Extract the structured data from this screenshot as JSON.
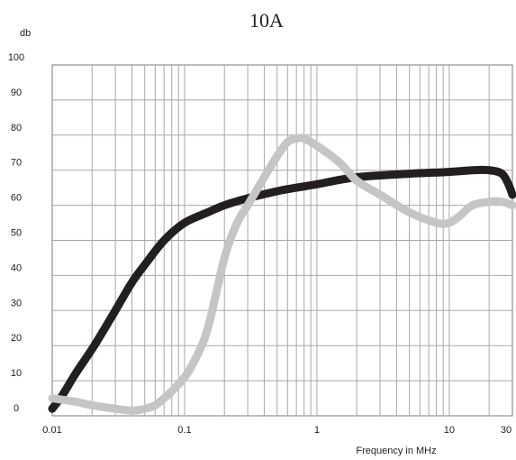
{
  "chart_data": {
    "type": "line",
    "title": "10A",
    "ylabel": "db",
    "xlabel": "Frequency in MHz",
    "x_scale": "log",
    "xlim": [
      0.01,
      30
    ],
    "ylim": [
      0,
      100
    ],
    "grid": true,
    "x_tick_labels": [
      {
        "value": 0.01,
        "label": "0.01"
      },
      {
        "value": 0.1,
        "label": "0.1"
      },
      {
        "value": 1,
        "label": "1"
      },
      {
        "value": 10,
        "label": "10"
      },
      {
        "value": 30,
        "label": "30"
      }
    ],
    "y_ticks": [
      0,
      10,
      20,
      30,
      40,
      50,
      60,
      70,
      80,
      90,
      100
    ],
    "series": [
      {
        "color": "#231f20",
        "x": [
          0.01,
          0.012,
          0.015,
          0.02,
          0.025,
          0.03,
          0.04,
          0.05,
          0.07,
          0.1,
          0.15,
          0.2,
          0.3,
          0.5,
          0.7,
          1,
          2,
          5,
          10,
          15,
          20,
          25,
          28,
          30
        ],
        "y": [
          2,
          6,
          12,
          19,
          25,
          30,
          38,
          43,
          50,
          55,
          58,
          60,
          62,
          64,
          65,
          66,
          68,
          69,
          69.5,
          70,
          70,
          69,
          66,
          63
        ]
      },
      {
        "color": "#c4c5c7",
        "x": [
          0.01,
          0.015,
          0.02,
          0.03,
          0.04,
          0.05,
          0.06,
          0.07,
          0.08,
          0.1,
          0.12,
          0.15,
          0.2,
          0.25,
          0.3,
          0.4,
          0.5,
          0.6,
          0.7,
          0.8,
          1,
          1.5,
          2,
          3,
          5,
          8,
          10,
          12,
          15,
          20,
          25,
          30
        ],
        "y": [
          5,
          4,
          3,
          2,
          1.5,
          2,
          3,
          5,
          7,
          11,
          16,
          25,
          45,
          55,
          60,
          68,
          74,
          78,
          79,
          79,
          77,
          72,
          67,
          63,
          58,
          55,
          55,
          57,
          60,
          61,
          61,
          60
        ]
      }
    ]
  }
}
